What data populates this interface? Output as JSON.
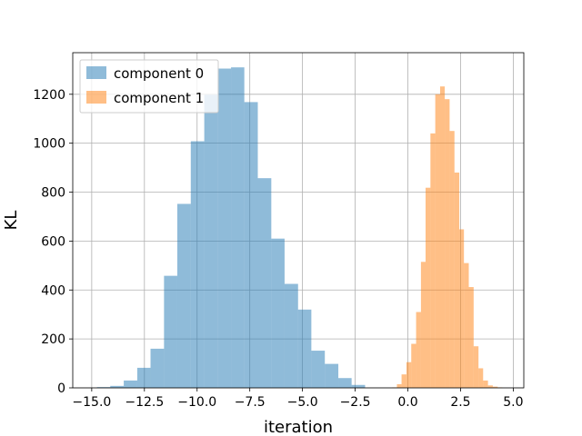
{
  "chart_data": {
    "type": "bar",
    "title": "",
    "xlabel": "iteration",
    "ylabel": "KL",
    "xlim": [
      -15.9,
      5.5
    ],
    "ylim": [
      0,
      1370
    ],
    "xticks": [
      -15.0,
      -12.5,
      -10.0,
      -7.5,
      -5.0,
      -2.5,
      0.0,
      2.5,
      5.0
    ],
    "xtick_labels": [
      "−15.0",
      "−12.5",
      "−10.0",
      "−7.5",
      "−5.0",
      "−2.5",
      "0.0",
      "2.5",
      "5.0"
    ],
    "yticks": [
      0,
      200,
      400,
      600,
      800,
      1000,
      1200
    ],
    "ytick_labels": [
      "0",
      "200",
      "400",
      "600",
      "800",
      "1000",
      "1200"
    ],
    "grid": true,
    "legend_position": "top-left",
    "series": [
      {
        "name": "component 0",
        "color": "#1f77b4",
        "alpha": 0.5,
        "bin_edges": [
          -14.75,
          -14.12,
          -13.48,
          -12.84,
          -12.21,
          -11.57,
          -10.94,
          -10.3,
          -9.66,
          -9.03,
          -8.39,
          -7.76,
          -7.12,
          -6.48,
          -5.85,
          -5.21,
          -4.58,
          -3.94,
          -3.3,
          -2.67,
          -2.03
        ],
        "counts": [
          3,
          8,
          30,
          82,
          160,
          458,
          752,
          1008,
          1198,
          1305,
          1310,
          1168,
          857,
          610,
          425,
          320,
          152,
          98,
          40,
          12
        ]
      },
      {
        "name": "component 1",
        "color": "#ff7f0e",
        "alpha": 0.5,
        "bin_edges": [
          -0.75,
          -0.52,
          -0.3,
          -0.07,
          0.16,
          0.39,
          0.62,
          0.84,
          1.07,
          1.3,
          1.53,
          1.75,
          1.98,
          2.21,
          2.44,
          2.66,
          2.89,
          3.12,
          3.35,
          3.57,
          3.8,
          4.03,
          4.26,
          4.48
        ],
        "counts": [
          2,
          15,
          55,
          105,
          180,
          310,
          515,
          818,
          1040,
          1200,
          1232,
          1180,
          1050,
          880,
          648,
          510,
          412,
          170,
          80,
          30,
          10,
          5,
          2
        ]
      }
    ]
  }
}
